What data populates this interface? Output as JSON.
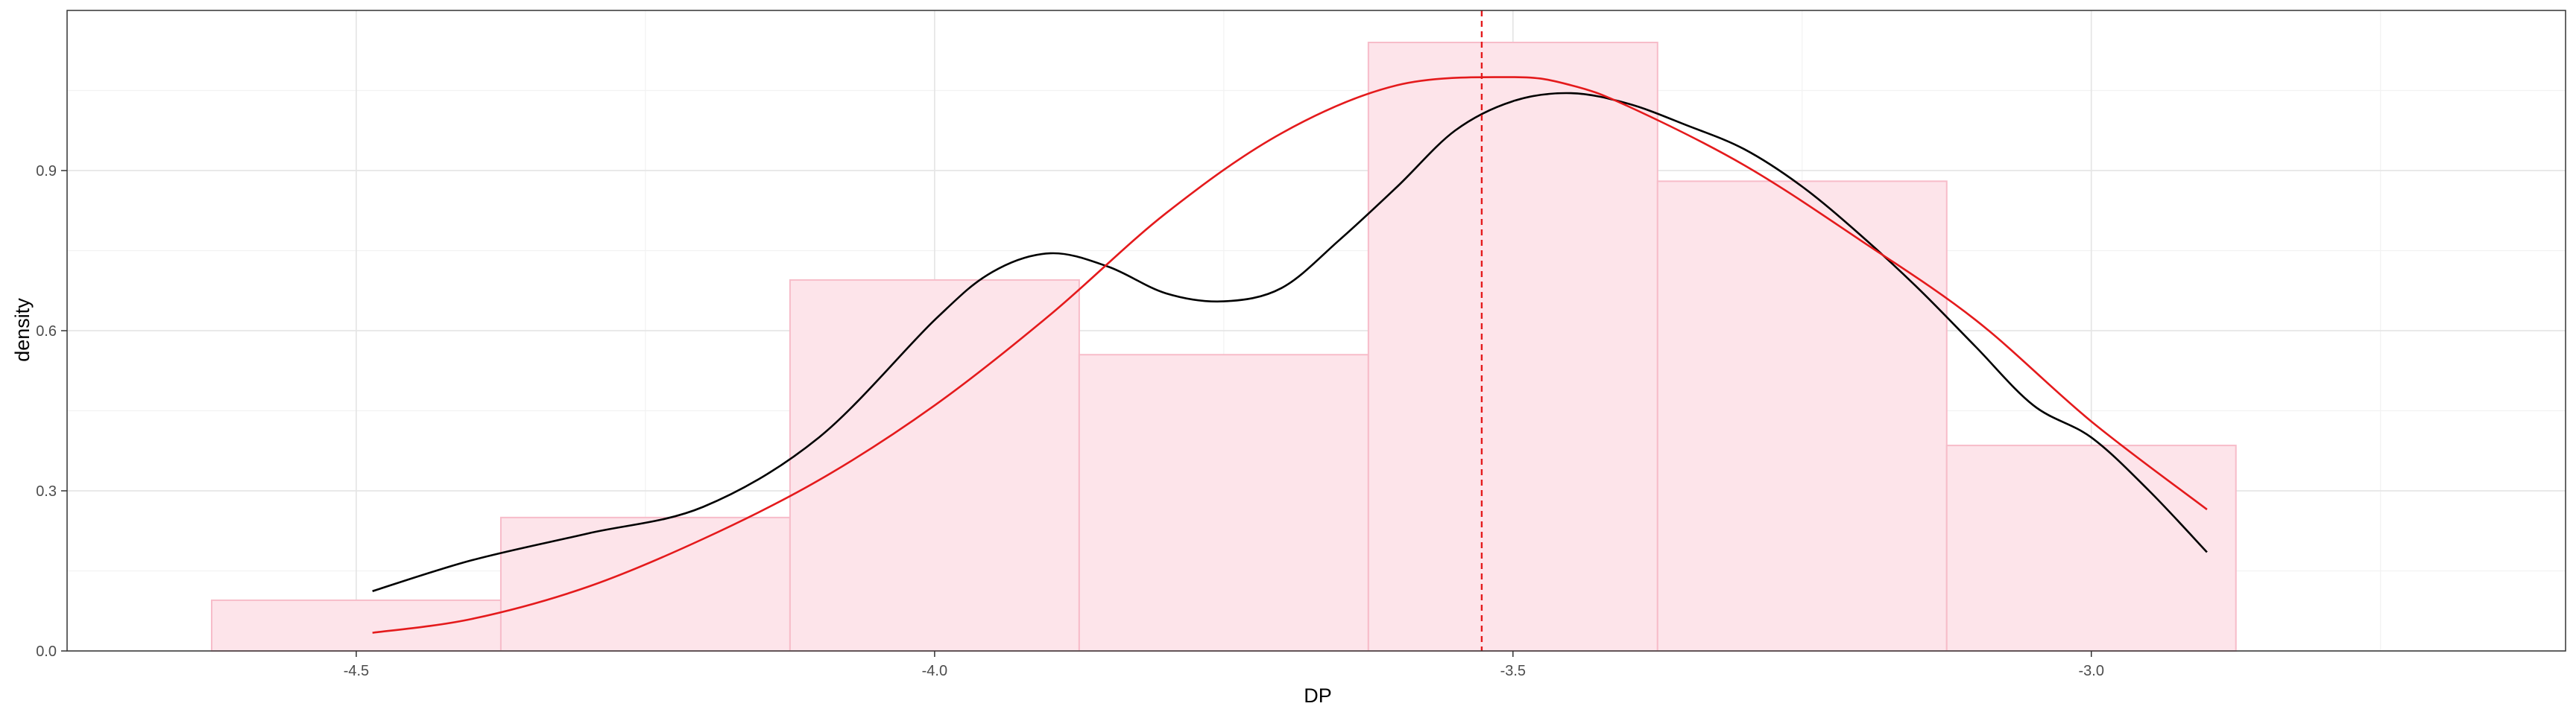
{
  "chart_data": {
    "type": "bar",
    "xlabel": "DP",
    "ylabel": "density",
    "xlim": [
      -4.75,
      -2.59
    ],
    "ylim": [
      0,
      1.2
    ],
    "grid": true,
    "x_ticks": [
      -4.5,
      -4.0,
      -3.5,
      -3.0
    ],
    "x_tick_labels": [
      "-4.5",
      "-4.0",
      "-3.5",
      "-3.0"
    ],
    "y_ticks": [
      0.0,
      0.3,
      0.6,
      0.9
    ],
    "y_tick_labels": [
      "0.0",
      "0.3",
      "0.6",
      "0.9"
    ],
    "histogram": {
      "fill": "#fde4ea",
      "stroke": "#f7bcc9",
      "bins": [
        {
          "x0": -4.625,
          "x1": -4.375,
          "density": 0.095
        },
        {
          "x0": -4.375,
          "x1": -4.125,
          "density": 0.25
        },
        {
          "x0": -4.125,
          "x1": -3.875,
          "density": 0.695
        },
        {
          "x0": -3.875,
          "x1": -3.625,
          "density": 0.555
        },
        {
          "x0": -3.625,
          "x1": -3.375,
          "density": 1.14
        },
        {
          "x0": -3.375,
          "x1": -3.125,
          "density": 0.88
        },
        {
          "x0": -3.125,
          "x1": -2.875,
          "density": 0.385
        }
      ]
    },
    "series": [
      {
        "color": "#000000",
        "x": [
          -4.486,
          -4.4,
          -4.3,
          -4.2,
          -4.1,
          -4.0,
          -3.95,
          -3.9,
          -3.85,
          -3.8,
          -3.75,
          -3.7,
          -3.65,
          -3.6,
          -3.55,
          -3.5,
          -3.45,
          -3.4,
          -3.35,
          -3.3,
          -3.25,
          -3.2,
          -3.15,
          -3.1,
          -3.05,
          -3.0,
          -2.95,
          -2.9
        ],
        "y": [
          0.112,
          0.17,
          0.22,
          0.27,
          0.4,
          0.62,
          0.71,
          0.745,
          0.72,
          0.67,
          0.655,
          0.68,
          0.77,
          0.87,
          0.975,
          1.03,
          1.045,
          1.025,
          0.985,
          0.94,
          0.87,
          0.78,
          0.68,
          0.57,
          0.46,
          0.4,
          0.3,
          0.185
        ]
      },
      {
        "color": "#e41a1c",
        "x": [
          -4.486,
          -4.4,
          -4.3,
          -4.2,
          -4.1,
          -4.0,
          -3.9,
          -3.8,
          -3.7,
          -3.6,
          -3.5,
          -3.45,
          -3.4,
          -3.3,
          -3.2,
          -3.1,
          -3.0,
          -2.9
        ],
        "y": [
          0.034,
          0.06,
          0.12,
          0.21,
          0.32,
          0.46,
          0.63,
          0.82,
          0.97,
          1.06,
          1.075,
          1.06,
          1.02,
          0.91,
          0.77,
          0.62,
          0.43,
          0.265
        ]
      }
    ],
    "vline": {
      "x": -3.527,
      "color": "#e41a1c",
      "style": "dashed"
    }
  }
}
